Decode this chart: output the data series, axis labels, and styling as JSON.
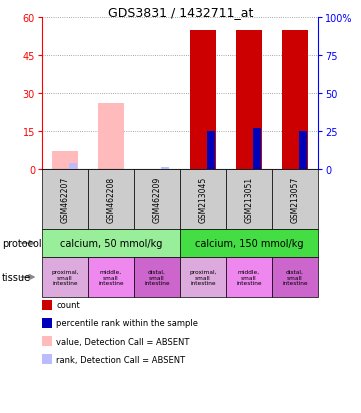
{
  "title": "GDS3831 / 1432711_at",
  "samples": [
    "GSM462207",
    "GSM462208",
    "GSM462209",
    "GSM213045",
    "GSM213051",
    "GSM213057"
  ],
  "count_values": [
    0,
    0,
    0,
    55,
    55,
    55
  ],
  "count_absent": [
    7,
    26,
    0,
    0,
    0,
    0
  ],
  "rank_values": [
    0,
    0,
    0,
    25,
    27,
    25
  ],
  "rank_absent": [
    4,
    0,
    1,
    0,
    0,
    0
  ],
  "ylim_left": [
    0,
    60
  ],
  "ylim_right": [
    0,
    100
  ],
  "yticks_left": [
    0,
    15,
    30,
    45,
    60
  ],
  "yticks_right": [
    0,
    25,
    50,
    75,
    100
  ],
  "color_count": "#cc0000",
  "color_rank": "#0000bb",
  "color_absent_count": "#ffbbbb",
  "color_absent_rank": "#bbbbff",
  "protocol_groups": [
    {
      "label": "calcium, 50 mmol/kg",
      "start": 0,
      "end": 3,
      "color": "#99ee99"
    },
    {
      "label": "calcium, 150 mmol/kg",
      "start": 3,
      "end": 6,
      "color": "#44dd44"
    }
  ],
  "tissue_labels": [
    "proximal,\nsmall\nintestine",
    "middle,\nsmall\nintestine",
    "distal,\nsmall\nintestine",
    "proximal,\nsmall\nintestine",
    "middle,\nsmall\nintestine",
    "distal,\nsmall\nintestine"
  ],
  "tissue_colors": [
    "#ddaadd",
    "#ee88ee",
    "#cc66cc",
    "#ddaadd",
    "#ee88ee",
    "#cc66cc"
  ],
  "sample_bg_color": "#cccccc",
  "legend_items": [
    {
      "color": "#cc0000",
      "label": "count",
      "marker": "s"
    },
    {
      "color": "#0000bb",
      "label": "percentile rank within the sample",
      "marker": "s"
    },
    {
      "color": "#ffbbbb",
      "label": "value, Detection Call = ABSENT",
      "marker": "s"
    },
    {
      "color": "#bbbbff",
      "label": "rank, Detection Call = ABSENT",
      "marker": "s"
    }
  ],
  "fig_width": 3.61,
  "fig_height": 4.14,
  "dpi": 100
}
